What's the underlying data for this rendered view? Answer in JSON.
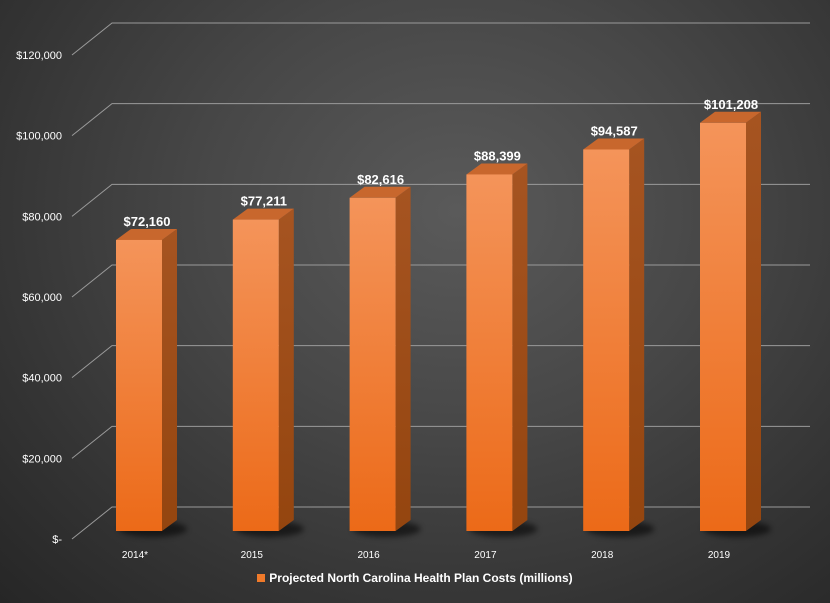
{
  "chart_data": {
    "type": "bar",
    "categories": [
      "2014*",
      "2015",
      "2016",
      "2017",
      "2018",
      "2019"
    ],
    "series": [
      {
        "name": "Projected North Carolina Health Plan Costs (millions)",
        "values": [
          72160,
          77211,
          82616,
          88399,
          94587,
          101208
        ]
      }
    ],
    "data_labels": [
      "$72,160",
      "$77,211",
      "$82,616",
      "$88,399",
      "$94,587",
      "$101,208"
    ],
    "y_ticks": [
      0,
      20000,
      40000,
      60000,
      80000,
      100000,
      120000
    ],
    "y_tick_labels": [
      "$-",
      "$20,000",
      "$40,000",
      "$60,000",
      "$80,000",
      "$100,000",
      "$120,000"
    ],
    "ylim": [
      0,
      120000
    ],
    "grid": true,
    "legend_position": "bottom",
    "three_d": true,
    "colors": {
      "bar_front_top": "#f4945a",
      "bar_front_bottom": "#ee6f1f",
      "bar_side": "#a9501a",
      "bar_top": "#c8672d",
      "gridline": "#9a9a9a",
      "text": "#ffffff"
    }
  },
  "legend": {
    "label": "Projected North Carolina Health Plan Costs (millions)"
  }
}
